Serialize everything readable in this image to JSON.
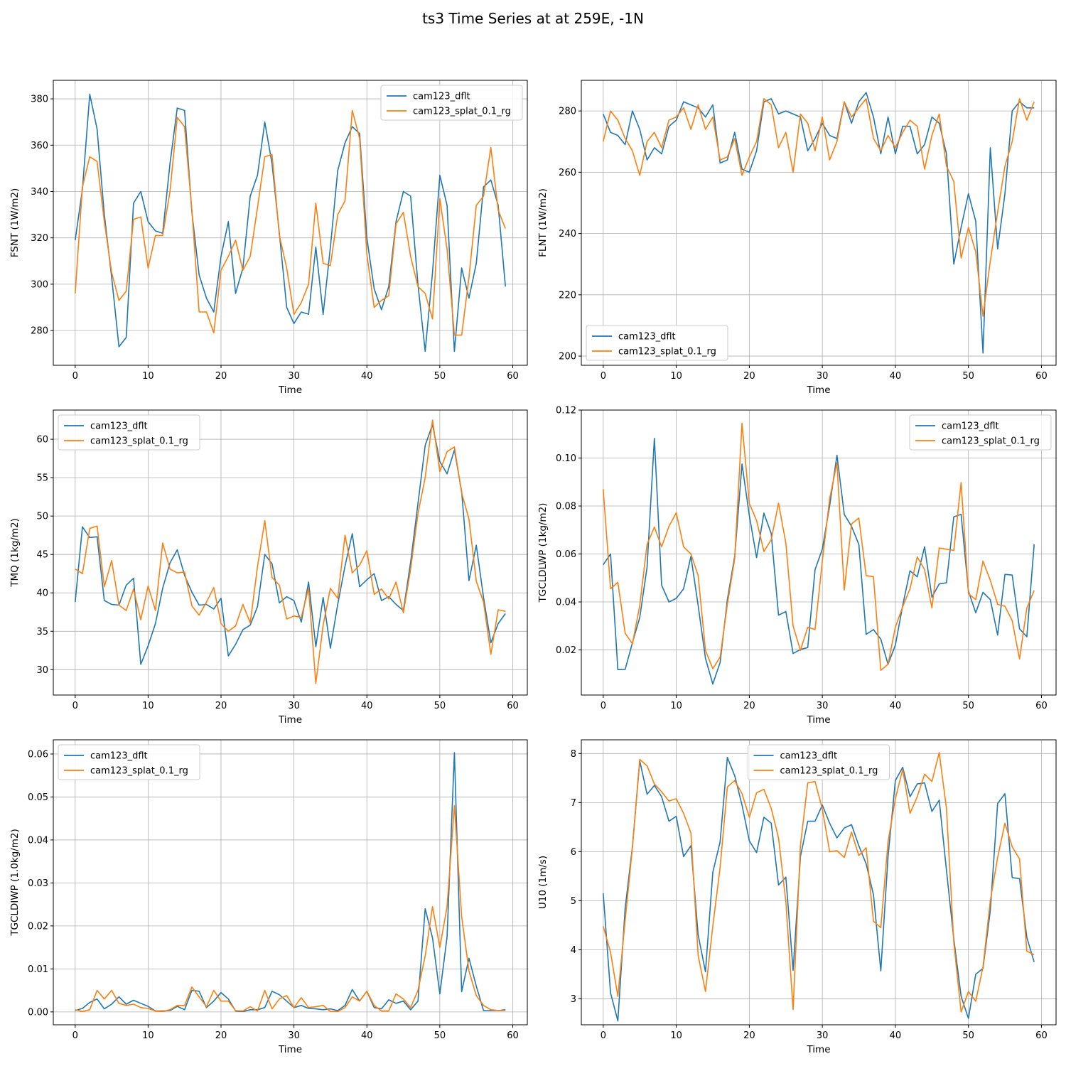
{
  "figure": {
    "title": "ts3 Time Series at at 259E, -1N"
  },
  "colors": {
    "cam123_dflt": "#1f77b4",
    "cam123_splat_0.1_rg": "#ff7f0e",
    "grid": "#b0b0b0"
  },
  "chart_data": [
    {
      "type": "line",
      "ylabel": "FSNT (1W/m2)",
      "xlabel": "Time",
      "xlim": [
        -3,
        62
      ],
      "ylim": [
        265,
        388
      ],
      "xticks": [
        0,
        10,
        20,
        30,
        40,
        50,
        60
      ],
      "yticks": [
        280,
        300,
        320,
        340,
        360,
        380
      ],
      "ytick_labels": [
        "280",
        "300",
        "320",
        "340",
        "360",
        "380"
      ],
      "legend": "top-right",
      "grid": true,
      "series": [
        {
          "name": "cam123_dflt",
          "values": [
            319,
            341,
            382,
            367,
            330,
            303,
            273,
            277,
            335,
            340,
            327,
            323,
            322,
            352,
            376,
            375,
            331,
            304,
            294,
            288,
            312,
            327,
            296,
            307,
            338,
            347,
            370,
            352,
            322,
            290,
            283,
            288,
            287,
            316,
            287,
            316,
            349,
            361,
            368,
            365,
            320,
            298,
            289,
            299,
            327,
            340,
            338,
            300,
            271,
            305,
            347,
            334,
            271,
            307,
            294,
            309,
            342,
            345,
            334,
            299
          ]
        },
        {
          "name": "cam123_splat_0.1_rg",
          "values": [
            296,
            342,
            355,
            353,
            327,
            305,
            293,
            297,
            328,
            329,
            307,
            321,
            321,
            340,
            372,
            368,
            332,
            288,
            288,
            279,
            306,
            312,
            319,
            306,
            312,
            333,
            355,
            356,
            321,
            307,
            287,
            292,
            300,
            335,
            309,
            308,
            330,
            336,
            375,
            363,
            313,
            290,
            293,
            295,
            326,
            331,
            312,
            299,
            296,
            285,
            337,
            315,
            278,
            278,
            303,
            334,
            338,
            359,
            332,
            324
          ]
        }
      ]
    },
    {
      "type": "line",
      "ylabel": "FLNT (1W/m2)",
      "xlabel": "Time",
      "xlim": [
        -3,
        62
      ],
      "ylim": [
        197,
        290
      ],
      "xticks": [
        0,
        10,
        20,
        30,
        40,
        50,
        60
      ],
      "yticks": [
        200,
        220,
        240,
        260,
        280
      ],
      "ytick_labels": [
        "200",
        "220",
        "240",
        "260",
        "280"
      ],
      "legend": "bottom-left",
      "grid": true,
      "series": [
        {
          "name": "cam123_dflt",
          "values": [
            279,
            273,
            272,
            269,
            280,
            274,
            264,
            268,
            266,
            275,
            277,
            283,
            282,
            281,
            278,
            282,
            263,
            264,
            273,
            261,
            260,
            267,
            283,
            284,
            279,
            280,
            279,
            278,
            267,
            271,
            276,
            272,
            271,
            283,
            276,
            283,
            286,
            278,
            266,
            278,
            266,
            275,
            275,
            266,
            269,
            278,
            276,
            266,
            230,
            242,
            253,
            244,
            201,
            268,
            235,
            253,
            280,
            283,
            281,
            281
          ]
        },
        {
          "name": "cam123_splat_0.1_rg",
          "values": [
            270,
            280,
            277,
            271,
            267,
            259,
            270,
            273,
            268,
            277,
            278,
            281,
            274,
            282,
            274,
            278,
            264,
            265,
            271,
            259,
            265,
            270,
            284,
            282,
            268,
            273,
            260,
            279,
            276,
            267,
            278,
            264,
            270,
            283,
            278,
            281,
            284,
            271,
            267,
            272,
            268,
            273,
            277,
            275,
            261,
            272,
            279,
            262,
            257,
            232,
            242,
            234,
            213,
            231,
            247,
            262,
            270,
            284,
            277,
            283
          ]
        }
      ]
    },
    {
      "type": "line",
      "ylabel": "TMQ (1kg/m2)",
      "xlabel": "Time",
      "xlim": [
        -3,
        62
      ],
      "ylim": [
        26.7,
        63.8
      ],
      "xticks": [
        0,
        10,
        20,
        30,
        40,
        50,
        60
      ],
      "yticks": [
        30,
        35,
        40,
        45,
        50,
        55,
        60
      ],
      "ytick_labels": [
        "30",
        "35",
        "40",
        "45",
        "50",
        "55",
        "60"
      ],
      "legend": "top-left",
      "grid": true,
      "series": [
        {
          "name": "cam123_dflt",
          "values": [
            38.8,
            48.6,
            47.2,
            47.3,
            39.0,
            38.5,
            38.4,
            41.0,
            41.9,
            30.7,
            33.1,
            36.0,
            40.6,
            43.9,
            45.6,
            42.3,
            40.1,
            38.4,
            38.5,
            37.9,
            39.3,
            31.8,
            33.3,
            35.2,
            35.8,
            38.2,
            45.0,
            43.8,
            38.7,
            39.5,
            39.0,
            36.2,
            41.4,
            33.0,
            39.4,
            32.8,
            38.5,
            43.5,
            47.7,
            40.8,
            41.7,
            42.5,
            39.0,
            39.5,
            38.5,
            37.7,
            44.0,
            51.6,
            59.2,
            61.9,
            57.1,
            55.5,
            58.6,
            53.2,
            41.6,
            46.2,
            39.4,
            33.5,
            36.0,
            37.3
          ]
        },
        {
          "name": "cam123_splat_0.1_rg",
          "values": [
            43.1,
            42.5,
            48.4,
            48.7,
            40.8,
            44.2,
            38.4,
            37.7,
            40.5,
            36.5,
            40.9,
            37.7,
            46.5,
            43.1,
            42.6,
            42.7,
            38.3,
            37.1,
            38.8,
            40.7,
            36.0,
            35.0,
            35.7,
            38.5,
            36.1,
            43.4,
            49.4,
            42.0,
            41.0,
            36.6,
            37.0,
            36.8,
            40.6,
            28.2,
            35.8,
            40.6,
            39.3,
            47.5,
            42.6,
            43.6,
            45.5,
            39.8,
            40.5,
            39.2,
            41.4,
            37.4,
            43.1,
            50.3,
            55.0,
            62.5,
            55.8,
            58.4,
            59.0,
            53.0,
            49.6,
            41.5,
            38.8,
            32.0,
            37.8,
            37.6
          ]
        }
      ]
    },
    {
      "type": "line",
      "ylabel": "TGCLDLWP (1kg/m2)",
      "xlabel": "Time",
      "xlim": [
        -3,
        62
      ],
      "ylim": [
        0.0012,
        0.12
      ],
      "xticks": [
        0,
        10,
        20,
        30,
        40,
        50,
        60
      ],
      "yticks": [
        0.02,
        0.04,
        0.06,
        0.08,
        0.1,
        0.12
      ],
      "ytick_labels": [
        "0.02",
        "0.04",
        "0.06",
        "0.08",
        "0.10",
        "0.12"
      ],
      "legend": "top-right",
      "grid": true,
      "series": [
        {
          "name": "cam123_dflt",
          "values": [
            0.0555,
            0.06,
            0.0118,
            0.0119,
            0.023,
            0.0335,
            0.0545,
            0.1082,
            0.047,
            0.04,
            0.0415,
            0.0455,
            0.059,
            0.0385,
            0.0165,
            0.0058,
            0.0148,
            0.041,
            0.059,
            0.0975,
            0.076,
            0.0585,
            0.077,
            0.0685,
            0.0345,
            0.036,
            0.0185,
            0.0202,
            0.021,
            0.0535,
            0.062,
            0.08,
            0.1012,
            0.0765,
            0.0715,
            0.064,
            0.0265,
            0.0285,
            0.0245,
            0.014,
            0.022,
            0.0385,
            0.053,
            0.0505,
            0.063,
            0.042,
            0.0475,
            0.048,
            0.0755,
            0.0765,
            0.0445,
            0.0355,
            0.044,
            0.041,
            0.0262,
            0.0515,
            0.0512,
            0.0288,
            0.0255,
            0.064
          ]
        },
        {
          "name": "cam123_splat_0.1_rg",
          "values": [
            0.087,
            0.0455,
            0.0482,
            0.027,
            0.0225,
            0.0385,
            0.064,
            0.0712,
            0.063,
            0.0715,
            0.0772,
            0.063,
            0.06,
            0.051,
            0.0198,
            0.0122,
            0.017,
            0.039,
            0.058,
            0.1145,
            0.081,
            0.074,
            0.061,
            0.066,
            0.0812,
            0.0645,
            0.03,
            0.0198,
            0.0295,
            0.0285,
            0.057,
            0.083,
            0.098,
            0.045,
            0.0725,
            0.075,
            0.051,
            0.0505,
            0.0115,
            0.014,
            0.0295,
            0.038,
            0.0455,
            0.0588,
            0.0535,
            0.0375,
            0.0625,
            0.062,
            0.0615,
            0.0898,
            0.0435,
            0.041,
            0.057,
            0.049,
            0.039,
            0.0382,
            0.0322,
            0.0162,
            0.0375,
            0.0448
          ]
        }
      ]
    },
    {
      "type": "line",
      "ylabel": "TGCLDIWP (1.0kg/m2)",
      "xlabel": "Time",
      "xlim": [
        -3,
        62
      ],
      "ylim": [
        -0.003,
        0.0633
      ],
      "xticks": [
        0,
        10,
        20,
        30,
        40,
        50,
        60
      ],
      "yticks": [
        0.0,
        0.01,
        0.02,
        0.03,
        0.04,
        0.05,
        0.06
      ],
      "ytick_labels": [
        "0.00",
        "0.01",
        "0.02",
        "0.03",
        "0.04",
        "0.05",
        "0.06"
      ],
      "legend": "top-left",
      "grid": true,
      "series": [
        {
          "name": "cam123_dflt",
          "values": [
            0.0003,
            0.0008,
            0.0022,
            0.003,
            0.0007,
            0.0018,
            0.0035,
            0.0018,
            0.0027,
            0.002,
            0.0013,
            0.0002,
            0.0002,
            0.0003,
            0.0013,
            0.0005,
            0.005,
            0.0048,
            0.001,
            0.0025,
            0.0045,
            0.003,
            0.0002,
            0.0001,
            0.0005,
            0.0005,
            0.001,
            0.0048,
            0.004,
            0.0025,
            0.001,
            0.0015,
            0.0008,
            0.0007,
            0.0005,
            0.0007,
            0.0003,
            0.0015,
            0.0052,
            0.0025,
            0.0048,
            0.001,
            0.0007,
            0.0028,
            0.002,
            0.0025,
            0.0005,
            0.0025,
            0.024,
            0.0172,
            0.0042,
            0.0175,
            0.0603,
            0.0047,
            0.0125,
            0.006,
            0.0003,
            0.0003,
            0.0003,
            0.0005
          ]
        },
        {
          "name": "cam123_splat_0.1_rg",
          "values": [
            0.0005,
            0.0001,
            0.0005,
            0.005,
            0.003,
            0.005,
            0.002,
            0.0015,
            0.0018,
            0.001,
            0.0008,
            0.0002,
            0.0001,
            0.0005,
            0.0015,
            0.0015,
            0.0058,
            0.0035,
            0.0012,
            0.005,
            0.0025,
            0.0025,
            0.0003,
            0.0002,
            0.0012,
            0.0002,
            0.005,
            0.0007,
            0.003,
            0.0038,
            0.001,
            0.0033,
            0.001,
            0.0012,
            0.0015,
            0.0001,
            0.0001,
            0.001,
            0.0035,
            0.0025,
            0.0048,
            0.0015,
            0.0002,
            0.0002,
            0.0042,
            0.003,
            0.001,
            0.005,
            0.013,
            0.0245,
            0.015,
            0.0245,
            0.048,
            0.0222,
            0.0095,
            0.0038,
            0.0015,
            0.0005,
            0.0003,
            0.0003
          ]
        }
      ]
    },
    {
      "type": "line",
      "ylabel": "U10 (1m/s)",
      "xlabel": "Time",
      "xlim": [
        -3,
        62
      ],
      "ylim": [
        2.47,
        8.28
      ],
      "xticks": [
        0,
        10,
        20,
        30,
        40,
        50,
        60
      ],
      "yticks": [
        3,
        4,
        5,
        6,
        7,
        8
      ],
      "ytick_labels": [
        "3",
        "4",
        "5",
        "6",
        "7",
        "8"
      ],
      "legend": "top-center",
      "grid": true,
      "series": [
        {
          "name": "cam123_dflt",
          "values": [
            5.15,
            3.12,
            2.55,
            4.85,
            6.1,
            7.85,
            7.17,
            7.35,
            7.12,
            6.62,
            6.72,
            5.9,
            6.12,
            4.3,
            3.55,
            5.58,
            6.2,
            7.92,
            7.55,
            6.95,
            6.22,
            5.98,
            6.7,
            6.58,
            5.32,
            5.48,
            3.58,
            5.9,
            6.62,
            6.62,
            6.95,
            6.58,
            6.28,
            6.48,
            6.55,
            6.12,
            5.75,
            5.12,
            3.57,
            5.9,
            7.45,
            7.72,
            7.12,
            7.38,
            7.4,
            6.82,
            7.05,
            5.62,
            4.22,
            3.05,
            2.6,
            3.5,
            3.62,
            4.8,
            6.98,
            7.18,
            5.47,
            5.45,
            4.25,
            3.75
          ]
        },
        {
          "name": "cam123_splat_0.1_rg",
          "values": [
            4.48,
            3.95,
            3.05,
            4.6,
            6.08,
            7.88,
            7.75,
            7.38,
            7.22,
            7.03,
            7.08,
            6.78,
            6.38,
            3.88,
            3.15,
            4.48,
            5.68,
            7.32,
            7.45,
            7.18,
            6.7,
            7.2,
            7.27,
            6.88,
            6.28,
            4.98,
            2.78,
            6.12,
            7.4,
            7.43,
            6.87,
            6.0,
            6.02,
            5.88,
            6.4,
            5.92,
            6.08,
            4.58,
            4.45,
            6.2,
            7.08,
            7.68,
            6.78,
            7.12,
            7.58,
            7.43,
            8.02,
            6.88,
            4.15,
            2.73,
            3.15,
            2.95,
            3.65,
            5.0,
            5.88,
            6.58,
            6.1,
            5.85,
            3.97,
            3.9
          ]
        }
      ]
    }
  ]
}
